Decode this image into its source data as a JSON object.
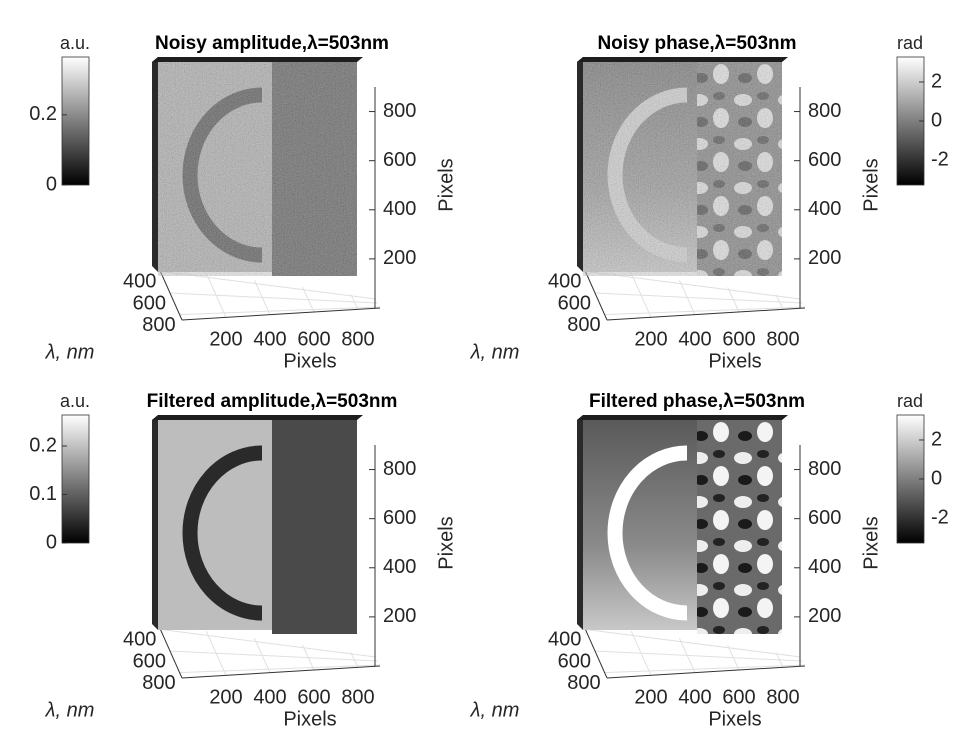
{
  "chart_data": [
    {
      "type": "volume",
      "title": "Noisy amplitude,λ=503nm",
      "colorbar": {
        "label": "a.u.",
        "lim": [
          0,
          0.365
        ],
        "ticks": [
          0,
          0.2
        ]
      },
      "xlabel": "Pixels",
      "ylabel": "λ, nm",
      "zlabel": "Pixels",
      "xlim": [
        0,
        900
      ],
      "xticks": [
        200,
        400,
        600,
        800
      ],
      "ylim": [
        350,
        850
      ],
      "yticks": [
        400,
        600,
        800
      ],
      "zlim": [
        0,
        900
      ],
      "zticks": [
        200,
        400,
        600,
        800
      ]
    },
    {
      "type": "volume",
      "title": "Noisy phase,λ=503nm",
      "colorbar": {
        "label": "rad",
        "lim": [
          -3.28,
          3.28
        ],
        "ticks": [
          -2,
          0,
          2
        ]
      },
      "xlabel": "Pixels",
      "ylabel": "λ, nm",
      "zlabel": "Pixels",
      "xlim": [
        0,
        900
      ],
      "xticks": [
        200,
        400,
        600,
        800
      ],
      "ylim": [
        350,
        850
      ],
      "yticks": [
        400,
        600,
        800
      ],
      "zlim": [
        0,
        900
      ],
      "zticks": [
        200,
        400,
        600,
        800
      ]
    },
    {
      "type": "volume",
      "title": "Filtered amplitude,λ=503nm",
      "colorbar": {
        "label": "a.u.",
        "lim": [
          0,
          0.264
        ],
        "ticks": [
          0,
          0.1,
          0.2
        ]
      },
      "xlabel": "Pixels",
      "ylabel": "λ, nm",
      "zlabel": "Pixels",
      "xlim": [
        0,
        900
      ],
      "xticks": [
        200,
        400,
        600,
        800
      ],
      "ylim": [
        350,
        850
      ],
      "yticks": [
        400,
        600,
        800
      ],
      "zlim": [
        0,
        900
      ],
      "zticks": [
        200,
        400,
        600,
        800
      ]
    },
    {
      "type": "volume",
      "title": "Filtered phase,λ=503nm",
      "colorbar": {
        "label": "rad",
        "lim": [
          -3.28,
          3.28
        ],
        "ticks": [
          -2,
          0,
          2
        ]
      },
      "xlabel": "Pixels",
      "ylabel": "λ, nm",
      "zlabel": "Pixels",
      "xlim": [
        0,
        900
      ],
      "xticks": [
        200,
        400,
        600,
        800
      ],
      "ylim": [
        350,
        850
      ],
      "yticks": [
        400,
        600,
        800
      ],
      "zlim": [
        0,
        900
      ],
      "zticks": [
        200,
        400,
        600,
        800
      ]
    }
  ]
}
